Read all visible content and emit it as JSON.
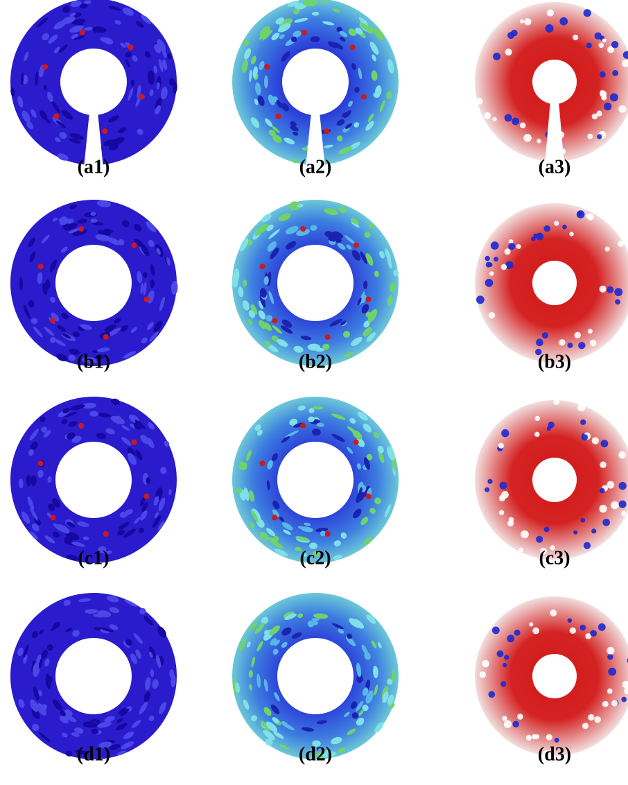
{
  "rows": [
    [
      "(a1)",
      "(a2)",
      "(a3)"
    ],
    [
      "(b1)",
      "(b2)",
      "(b3)"
    ],
    [
      "(c1)",
      "(c2)",
      "(c3)"
    ],
    [
      "(d1)",
      "(d2)",
      "(d3)"
    ]
  ]
}
